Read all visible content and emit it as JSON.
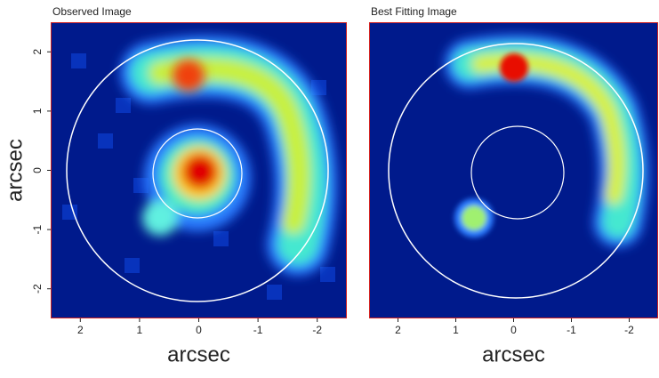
{
  "chart_data": [
    {
      "type": "image",
      "title": "Observed Image",
      "xlabel": "arcsec",
      "ylabel": "arcsec",
      "xlim": [
        2.5,
        -2.5
      ],
      "ylim": [
        -2.5,
        2.5
      ],
      "xticks": [
        2,
        1,
        0,
        -1,
        -2
      ],
      "yticks": [
        -2,
        -1,
        0,
        1,
        2
      ]
    },
    {
      "type": "image",
      "title": "Best Fitting Image",
      "xlabel": "arcsec",
      "xlim": [
        2.5,
        -2.5
      ],
      "ylim": [
        -2.5,
        2.5
      ],
      "xticks": [
        2,
        1,
        0,
        -1,
        -2
      ]
    }
  ]
}
